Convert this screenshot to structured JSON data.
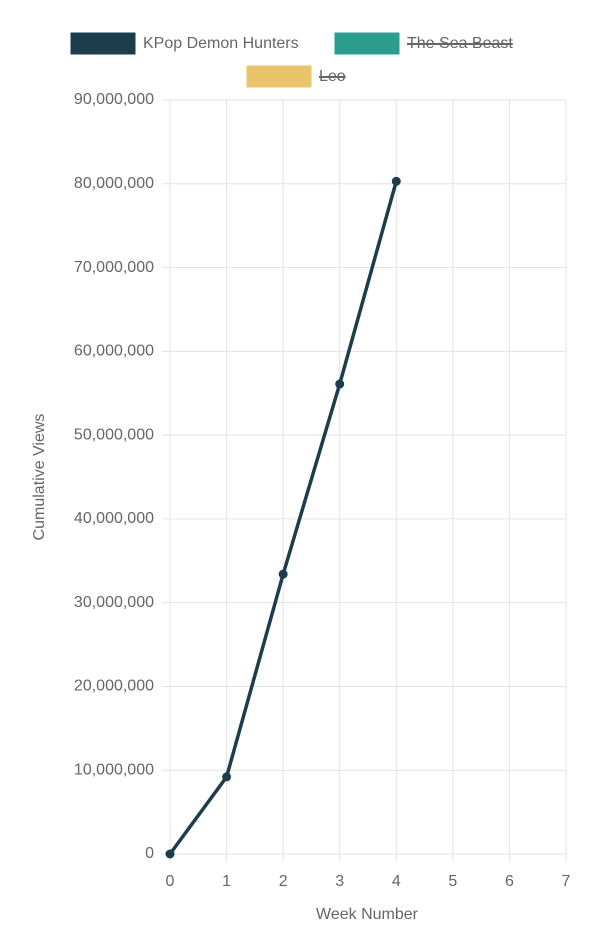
{
  "chart_data": {
    "type": "line",
    "x_label": "Week Number",
    "y_label": "Cumulative Views",
    "x": [
      0,
      1,
      2,
      3,
      4
    ],
    "series": [
      {
        "name": "KPop Demon Hunters",
        "color": "#1e3d4c",
        "hidden": false,
        "values": [
          0,
          9200000,
          33400000,
          56100000,
          80300000
        ]
      },
      {
        "name": "The Sea Beast",
        "color": "#2a9d8f",
        "hidden": true,
        "values": [
          null,
          null,
          null,
          null,
          null
        ]
      },
      {
        "name": "Leo",
        "color": "#e9c46a",
        "hidden": true,
        "values": [
          null,
          null,
          null,
          null,
          null
        ]
      }
    ],
    "xlim": [
      0,
      7
    ],
    "xticks": [
      0,
      1,
      2,
      3,
      4,
      5,
      6,
      7
    ],
    "ylim": [
      0,
      90000000
    ],
    "yticks": [
      0,
      {
        "value": 10000000,
        "label": "10,000,000"
      },
      {
        "value": 20000000,
        "label": "20,000,000"
      },
      {
        "value": 30000000,
        "label": "30,000,000"
      },
      {
        "value": 40000000,
        "label": "40,000,000"
      },
      {
        "value": 50000000,
        "label": "50,000,000"
      },
      {
        "value": 60000000,
        "label": "60,000,000"
      },
      {
        "value": 70000000,
        "label": "70,000,000"
      },
      {
        "value": 80000000,
        "label": "80,000,000"
      },
      {
        "value": 90000000,
        "label": "90,000,000"
      }
    ],
    "grid": true,
    "legend": "top"
  }
}
